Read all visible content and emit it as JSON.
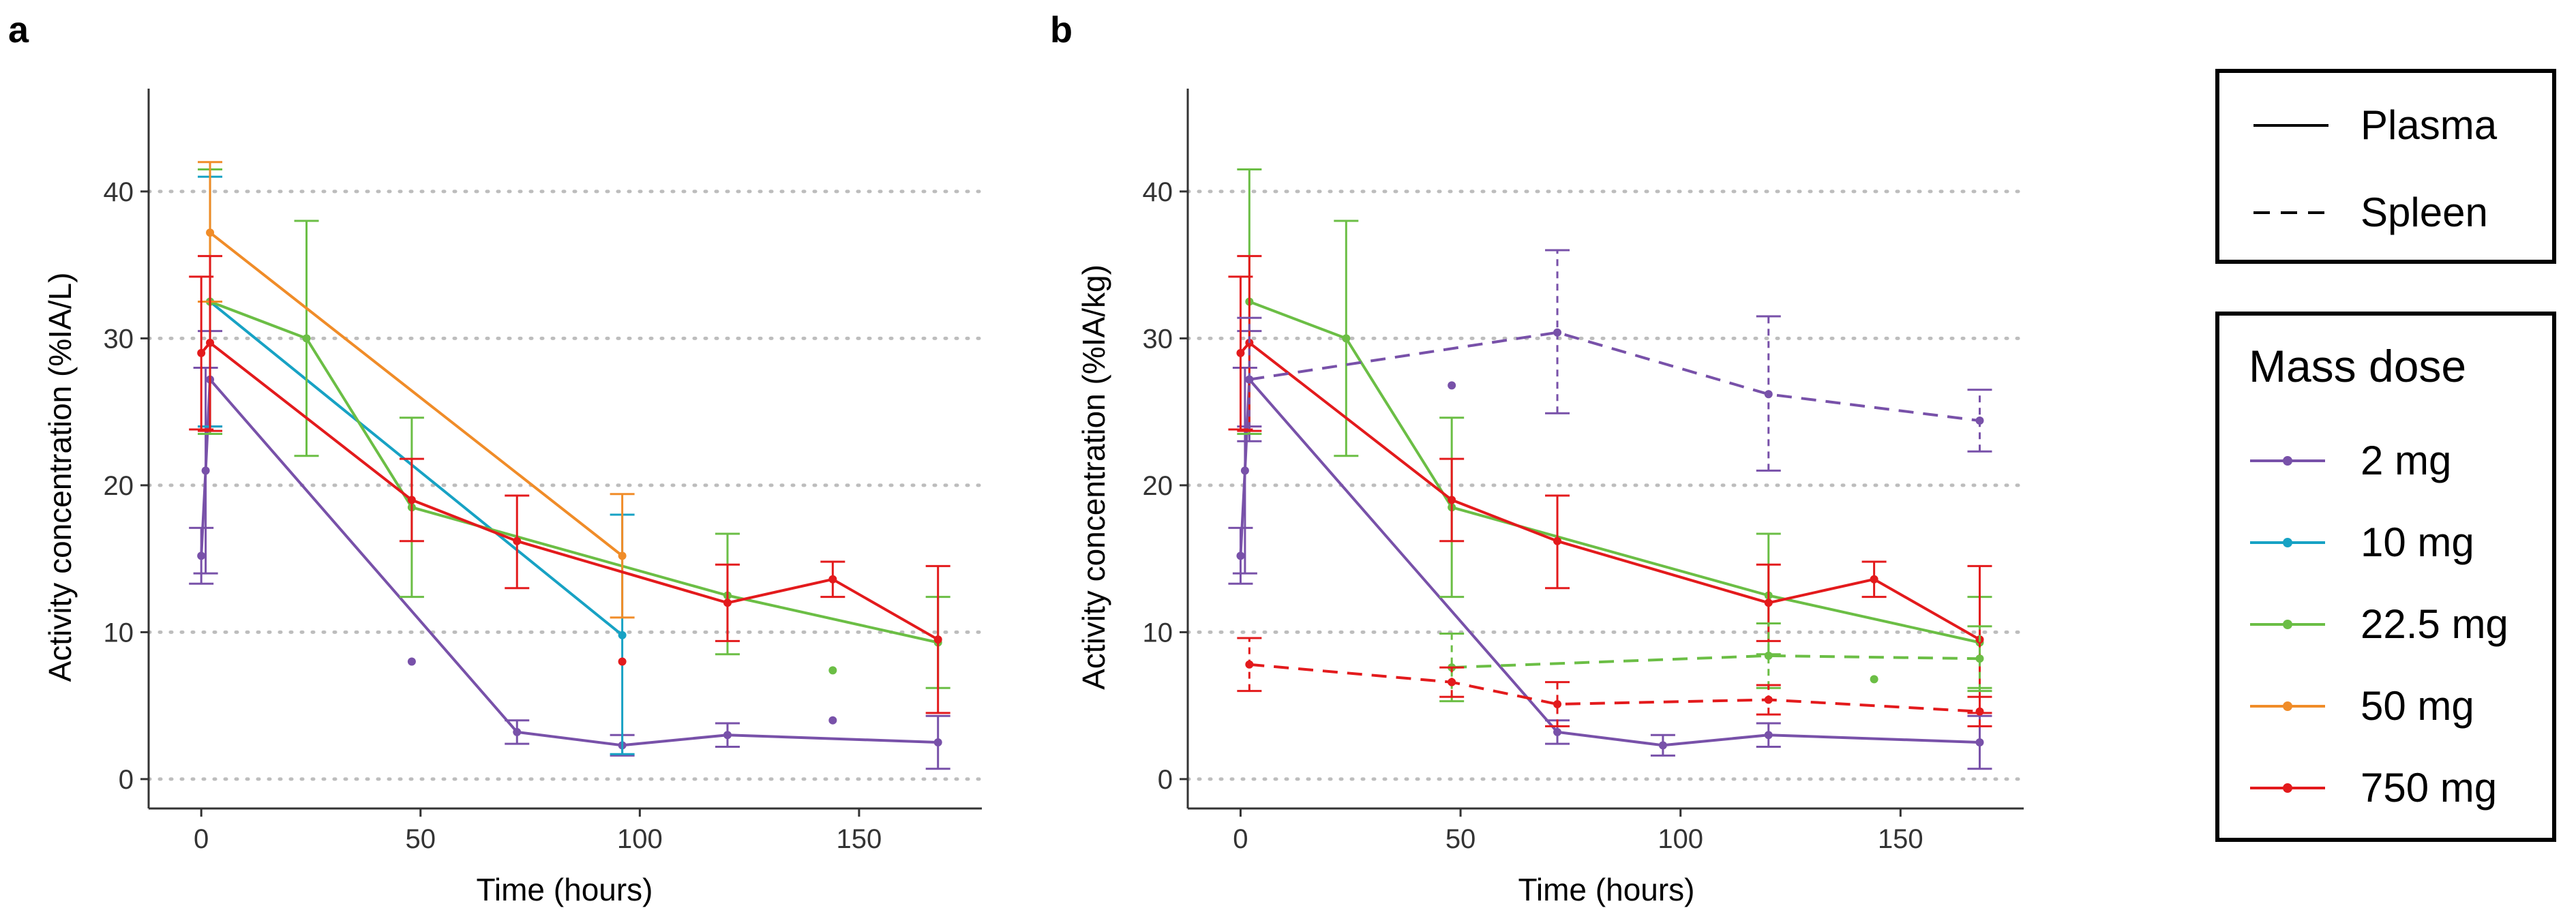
{
  "chart_data": [
    {
      "panel": "a",
      "type": "line",
      "xlabel": "Time (hours)",
      "ylabel": "Activity concentration (%IA/L)",
      "xlim": [
        -12,
        178
      ],
      "ylim": [
        -2,
        47
      ],
      "xticks": [
        0,
        50,
        100,
        150
      ],
      "yticks": [
        0,
        10,
        20,
        30,
        40
      ],
      "grid": "horizontal dotted",
      "series": [
        {
          "name": "2 mg",
          "tissue": "Plasma",
          "style": "solid",
          "points": [
            {
              "x": 0,
              "y": 15.2,
              "lo": 13.3,
              "hi": 17.1
            },
            {
              "x": 1,
              "y": 21.0,
              "lo": 14.0,
              "hi": 28.0
            },
            {
              "x": 2,
              "y": 27.2,
              "lo": 24.0,
              "hi": 30.5
            },
            {
              "x": 72,
              "y": 3.2,
              "lo": 2.4,
              "hi": 4.0
            },
            {
              "x": 96,
              "y": 2.3,
              "lo": 1.6,
              "hi": 3.0
            },
            {
              "x": 120,
              "y": 3.0,
              "lo": 2.2,
              "hi": 3.8
            },
            {
              "x": 168,
              "y": 2.5,
              "lo": 0.7,
              "hi": 4.3
            }
          ],
          "outliers": [
            {
              "x": 48,
              "y": 8.0
            },
            {
              "x": 144,
              "y": 4.0
            }
          ]
        },
        {
          "name": "10 mg",
          "tissue": "Plasma",
          "style": "solid",
          "points": [
            {
              "x": 2,
              "y": 32.5,
              "lo": 24.0,
              "hi": 41.0
            },
            {
              "x": 96,
              "y": 9.8,
              "lo": 1.7,
              "hi": 18.0
            }
          ],
          "outliers": []
        },
        {
          "name": "22.5 mg",
          "tissue": "Plasma",
          "style": "solid",
          "points": [
            {
              "x": 2,
              "y": 32.5,
              "lo": 23.5,
              "hi": 41.5
            },
            {
              "x": 24,
              "y": 30.0,
              "lo": 22.0,
              "hi": 38.0
            },
            {
              "x": 48,
              "y": 18.5,
              "lo": 12.4,
              "hi": 24.6
            },
            {
              "x": 120,
              "y": 12.5,
              "lo": 8.5,
              "hi": 16.7
            },
            {
              "x": 168,
              "y": 9.3,
              "lo": 6.2,
              "hi": 12.4
            }
          ],
          "outliers": [
            {
              "x": 144,
              "y": 7.4
            }
          ]
        },
        {
          "name": "50 mg",
          "tissue": "Plasma",
          "style": "solid",
          "points": [
            {
              "x": 2,
              "y": 37.2,
              "lo": 32.5,
              "hi": 42.0
            },
            {
              "x": 96,
              "y": 15.2,
              "lo": 11.0,
              "hi": 19.4
            }
          ],
          "outliers": []
        },
        {
          "name": "750 mg",
          "tissue": "Plasma",
          "style": "solid",
          "points": [
            {
              "x": 0,
              "y": 29.0,
              "lo": 23.8,
              "hi": 34.2
            },
            {
              "x": 2,
              "y": 29.7,
              "lo": 23.7,
              "hi": 35.6
            },
            {
              "x": 48,
              "y": 19.0,
              "lo": 16.2,
              "hi": 21.8
            },
            {
              "x": 72,
              "y": 16.2,
              "lo": 13.0,
              "hi": 19.3
            },
            {
              "x": 120,
              "y": 12.0,
              "lo": 9.4,
              "hi": 14.6
            },
            {
              "x": 144,
              "y": 13.6,
              "lo": 12.4,
              "hi": 14.8
            },
            {
              "x": 168,
              "y": 9.5,
              "lo": 4.5,
              "hi": 14.5
            }
          ],
          "outliers": [
            {
              "x": 96,
              "y": 8.0
            }
          ]
        }
      ]
    },
    {
      "panel": "b",
      "type": "line",
      "xlabel": "Time (hours)",
      "ylabel": "Activity concentration (%IA/kg)",
      "xlim": [
        -12,
        178
      ],
      "ylim": [
        -2,
        47
      ],
      "xticks": [
        0,
        50,
        100,
        150
      ],
      "yticks": [
        0,
        10,
        20,
        30,
        40
      ],
      "grid": "horizontal dotted",
      "series": [
        {
          "name": "2 mg",
          "tissue": "Plasma",
          "style": "solid",
          "points": [
            {
              "x": 0,
              "y": 15.2,
              "lo": 13.3,
              "hi": 17.1
            },
            {
              "x": 1,
              "y": 21.0,
              "lo": 14.0,
              "hi": 28.0
            },
            {
              "x": 2,
              "y": 27.2,
              "lo": 24.0,
              "hi": 30.5
            },
            {
              "x": 72,
              "y": 3.2,
              "lo": 2.4,
              "hi": 4.0
            },
            {
              "x": 96,
              "y": 2.3,
              "lo": 1.6,
              "hi": 3.0
            },
            {
              "x": 120,
              "y": 3.0,
              "lo": 2.2,
              "hi": 3.8
            },
            {
              "x": 168,
              "y": 2.5,
              "lo": 0.7,
              "hi": 4.3
            }
          ],
          "outliers": []
        },
        {
          "name": "22.5 mg",
          "tissue": "Plasma",
          "style": "solid",
          "points": [
            {
              "x": 2,
              "y": 32.5,
              "lo": 23.5,
              "hi": 41.5
            },
            {
              "x": 24,
              "y": 30.0,
              "lo": 22.0,
              "hi": 38.0
            },
            {
              "x": 48,
              "y": 18.5,
              "lo": 12.4,
              "hi": 24.6
            },
            {
              "x": 120,
              "y": 12.5,
              "lo": 8.5,
              "hi": 16.7
            },
            {
              "x": 168,
              "y": 9.3,
              "lo": 6.2,
              "hi": 12.4
            }
          ],
          "outliers": []
        },
        {
          "name": "750 mg",
          "tissue": "Plasma",
          "style": "solid",
          "points": [
            {
              "x": 0,
              "y": 29.0,
              "lo": 23.8,
              "hi": 34.2
            },
            {
              "x": 2,
              "y": 29.7,
              "lo": 23.7,
              "hi": 35.6
            },
            {
              "x": 48,
              "y": 19.0,
              "lo": 16.2,
              "hi": 21.8
            },
            {
              "x": 72,
              "y": 16.2,
              "lo": 13.0,
              "hi": 19.3
            },
            {
              "x": 120,
              "y": 12.0,
              "lo": 9.4,
              "hi": 14.6
            },
            {
              "x": 144,
              "y": 13.6,
              "lo": 12.4,
              "hi": 14.8
            },
            {
              "x": 168,
              "y": 9.5,
              "lo": 4.5,
              "hi": 14.5
            }
          ],
          "outliers": []
        },
        {
          "name": "2 mg",
          "tissue": "Spleen",
          "style": "dashed",
          "points": [
            {
              "x": 2,
              "y": 27.2,
              "lo": 23.0,
              "hi": 31.4
            },
            {
              "x": 72,
              "y": 30.4,
              "lo": 24.9,
              "hi": 36.0
            },
            {
              "x": 120,
              "y": 26.2,
              "lo": 21.0,
              "hi": 31.5
            },
            {
              "x": 168,
              "y": 24.4,
              "lo": 22.3,
              "hi": 26.5
            }
          ],
          "outliers": [
            {
              "x": 48,
              "y": 26.8
            }
          ]
        },
        {
          "name": "22.5 mg",
          "tissue": "Spleen",
          "style": "dashed",
          "points": [
            {
              "x": 48,
              "y": 7.6,
              "lo": 5.3,
              "hi": 9.9
            },
            {
              "x": 120,
              "y": 8.4,
              "lo": 6.2,
              "hi": 10.6
            },
            {
              "x": 168,
              "y": 8.2,
              "lo": 6.0,
              "hi": 10.4
            }
          ],
          "outliers": [
            {
              "x": 144,
              "y": 6.8
            }
          ]
        },
        {
          "name": "750 mg",
          "tissue": "Spleen",
          "style": "dashed",
          "points": [
            {
              "x": 2,
              "y": 7.8,
              "lo": 6.0,
              "hi": 9.6
            },
            {
              "x": 48,
              "y": 6.6,
              "lo": 5.6,
              "hi": 7.6
            },
            {
              "x": 72,
              "y": 5.1,
              "lo": 3.6,
              "hi": 6.6
            },
            {
              "x": 120,
              "y": 5.4,
              "lo": 4.4,
              "hi": 6.4
            },
            {
              "x": 168,
              "y": 4.6,
              "lo": 3.6,
              "hi": 5.6
            }
          ],
          "outliers": []
        }
      ]
    }
  ],
  "legend_linetype": {
    "items": [
      {
        "label": "Plasma",
        "style": "solid"
      },
      {
        "label": "Spleen",
        "style": "dashed"
      }
    ]
  },
  "legend_dose": {
    "title": "Mass dose",
    "items": [
      {
        "label": "2 mg",
        "color": "#7851A9"
      },
      {
        "label": "10 mg",
        "color": "#17A2C4"
      },
      {
        "label": "22.5 mg",
        "color": "#6BBE45"
      },
      {
        "label": "50 mg",
        "color": "#F08C28"
      },
      {
        "label": "750 mg",
        "color": "#E31A1C"
      }
    ]
  }
}
